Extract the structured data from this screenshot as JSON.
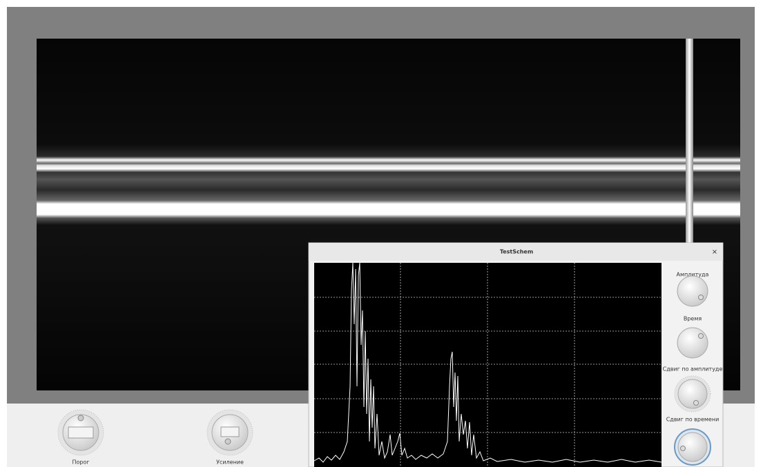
{
  "window": {
    "title": "TestSchem",
    "close": "×"
  },
  "scope_controls": [
    "Амплитуда",
    "Время",
    "Сдвиг по амплитуде",
    "Сдвиг по времени"
  ],
  "main_controls": [
    "Порог",
    "Усиление"
  ]
}
